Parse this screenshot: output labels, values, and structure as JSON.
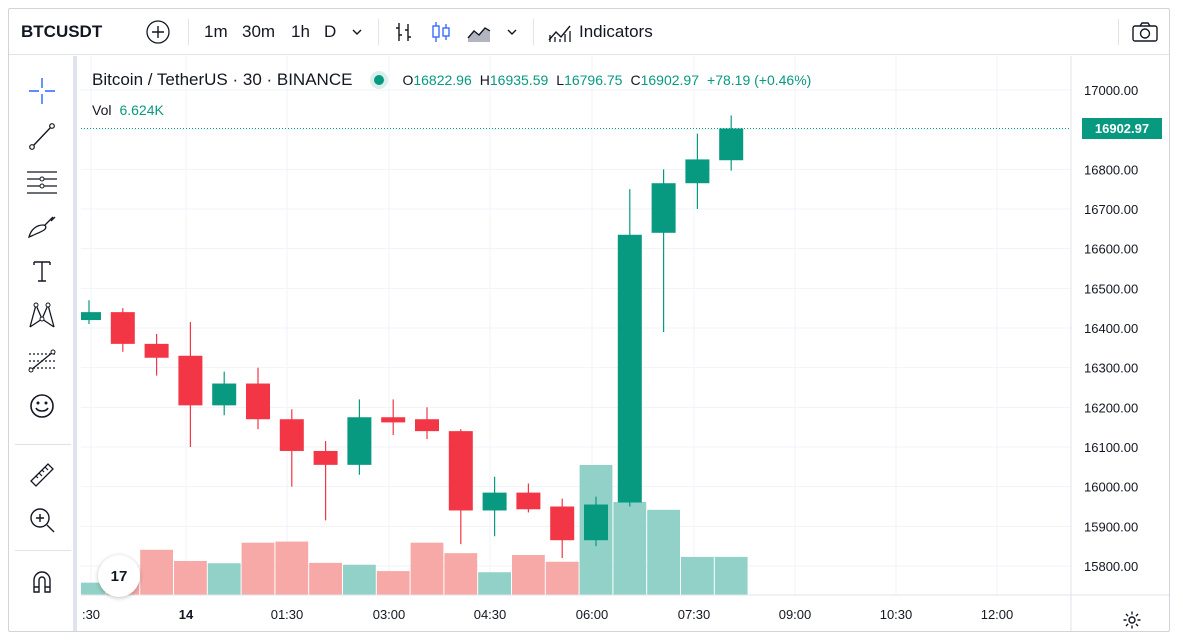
{
  "toolbar": {
    "symbol": "BTCUSDT",
    "intervals": [
      "1m",
      "30m",
      "1h",
      "D"
    ],
    "active_interval": "30m",
    "indicators_label": "Indicators",
    "icons": [
      "add-symbol-icon",
      "bars-style-icon",
      "candles-style-icon",
      "area-style-icon",
      "chevron-down-icon",
      "indicators-icon",
      "camera-icon"
    ]
  },
  "drawing_tools": [
    "crosshair-icon",
    "trend-line-icon",
    "horizontal-lines-icon",
    "brush-icon",
    "text-icon",
    "pattern-icon",
    "fib-icon",
    "emoji-icon",
    "ruler-icon",
    "zoom-in-icon",
    "magnet-icon"
  ],
  "legend": {
    "title": "Bitcoin / TetherUS · 30 · BINANCE",
    "o_label": "O",
    "o": "16822.96",
    "h_label": "H",
    "h": "16935.59",
    "l_label": "L",
    "l": "16796.75",
    "c_label": "C",
    "c": "16902.97",
    "change": "+78.19 (+0.46%)",
    "vol_label": "Vol",
    "vol": "6.624K"
  },
  "last_price": "16902.97",
  "price_scale": [
    "17000.00",
    "16900.00",
    "16800.00",
    "16700.00",
    "16600.00",
    "16500.00",
    "16400.00",
    "16300.00",
    "16200.00",
    "16100.00",
    "16000.00",
    "15900.00",
    "15800.00"
  ],
  "time_scale": [
    ":30",
    "14",
    "01:30",
    "03:00",
    "04:30",
    "06:00",
    "07:30",
    "09:00",
    "10:30",
    "12:00"
  ],
  "logo_text": "17",
  "colors": {
    "up": "#089981",
    "down": "#f23645",
    "up_vol": "#92d1c7",
    "down_vol": "#f7a9a7",
    "accent": "#2962ff"
  },
  "chart_data": {
    "type": "candlestick",
    "y_range": [
      15730,
      17060
    ],
    "candles": [
      {
        "o": 16420,
        "h": 16470,
        "l": 16410,
        "c": 16440,
        "v": 0.33
      },
      {
        "o": 16440,
        "h": 16450,
        "l": 16340,
        "c": 16360,
        "v": 0.53
      },
      {
        "o": 16360,
        "h": 16385,
        "l": 16280,
        "c": 16325,
        "v": 1.21
      },
      {
        "o": 16330,
        "h": 16415,
        "l": 16100,
        "c": 16205,
        "v": 0.91
      },
      {
        "o": 16205,
        "h": 16290,
        "l": 16180,
        "c": 16260,
        "v": 0.85
      },
      {
        "o": 16260,
        "h": 16300,
        "l": 16145,
        "c": 16170,
        "v": 1.4
      },
      {
        "o": 16170,
        "h": 16195,
        "l": 16000,
        "c": 16090,
        "v": 1.43
      },
      {
        "o": 16090,
        "h": 16115,
        "l": 15915,
        "c": 16055,
        "v": 0.86
      },
      {
        "o": 16055,
        "h": 16220,
        "l": 16030,
        "c": 16175,
        "v": 0.81
      },
      {
        "o": 16175,
        "h": 16220,
        "l": 16130,
        "c": 16162,
        "v": 0.64
      },
      {
        "o": 16170,
        "h": 16200,
        "l": 16120,
        "c": 16140,
        "v": 1.4
      },
      {
        "o": 16140,
        "h": 16145,
        "l": 15855,
        "c": 15940,
        "v": 1.12
      },
      {
        "o": 15940,
        "h": 16025,
        "l": 15875,
        "c": 15985,
        "v": 0.61
      },
      {
        "o": 15985,
        "h": 16008,
        "l": 15935,
        "c": 15943,
        "v": 1.07
      },
      {
        "o": 15950,
        "h": 15970,
        "l": 15820,
        "c": 15865,
        "v": 0.89
      },
      {
        "o": 15865,
        "h": 15975,
        "l": 15850,
        "c": 15955,
        "v": 3.48
      },
      {
        "o": 15960,
        "h": 16750,
        "l": 15950,
        "c": 16635,
        "v": 2.49
      },
      {
        "o": 16640,
        "h": 16800,
        "l": 16390,
        "c": 16765,
        "v": 2.28
      },
      {
        "o": 16765,
        "h": 16890,
        "l": 16700,
        "c": 16825,
        "v": 1.02
      },
      {
        "o": 16822.96,
        "h": 16935.59,
        "l": 16796.75,
        "c": 16902.97,
        "v": 1.02
      }
    ]
  }
}
